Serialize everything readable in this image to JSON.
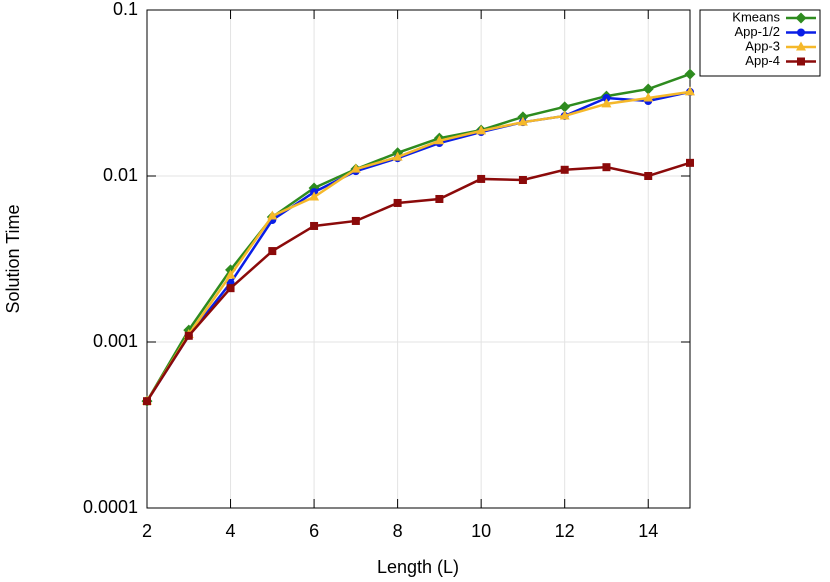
{
  "chart_data": {
    "type": "line",
    "x_label": "Length (L)",
    "y_label": "Solution Time",
    "x": [
      2,
      3,
      4,
      5,
      6,
      7,
      8,
      9,
      10,
      11,
      12,
      13,
      14,
      15
    ],
    "series": [
      {
        "name": "Kmeans",
        "color": "#2e8b1f",
        "marker": "diamond",
        "values": [
          0.00044,
          0.00118,
          0.00272,
          0.00566,
          0.00847,
          0.011,
          0.0138,
          0.0169,
          0.0189,
          0.0227,
          0.0261,
          0.0303,
          0.0334,
          0.0411
        ]
      },
      {
        "name": "App-1/2",
        "color": "#0a1ee6",
        "marker": "circle",
        "values": [
          0.00044,
          0.00109,
          0.00227,
          0.00543,
          0.008,
          0.0107,
          0.0128,
          0.0158,
          0.0184,
          0.0211,
          0.023,
          0.0295,
          0.0283,
          0.0321
        ]
      },
      {
        "name": "App-3",
        "color": "#f5b82a",
        "marker": "triangle",
        "values": [
          0.00044,
          0.00111,
          0.00253,
          0.00574,
          0.00747,
          0.011,
          0.013,
          0.0163,
          0.0187,
          0.0211,
          0.023,
          0.0272,
          0.0295,
          0.0321
        ]
      },
      {
        "name": "App-4",
        "color": "#8b0a0a",
        "marker": "square",
        "values": [
          0.00044,
          0.00109,
          0.00211,
          0.00353,
          0.005,
          0.00536,
          0.00688,
          0.00727,
          0.0096,
          0.00946,
          0.0109,
          0.0113,
          0.01,
          0.012
        ]
      }
    ],
    "xlim": [
      2,
      15
    ],
    "xticks": [
      2,
      4,
      6,
      8,
      10,
      12,
      14
    ],
    "ylim": [
      0.0001,
      0.1
    ],
    "yticks": [
      0.0001,
      0.001,
      0.01,
      0.1
    ],
    "y_scale": "log",
    "grid": true,
    "legend": "outside-top-right"
  }
}
